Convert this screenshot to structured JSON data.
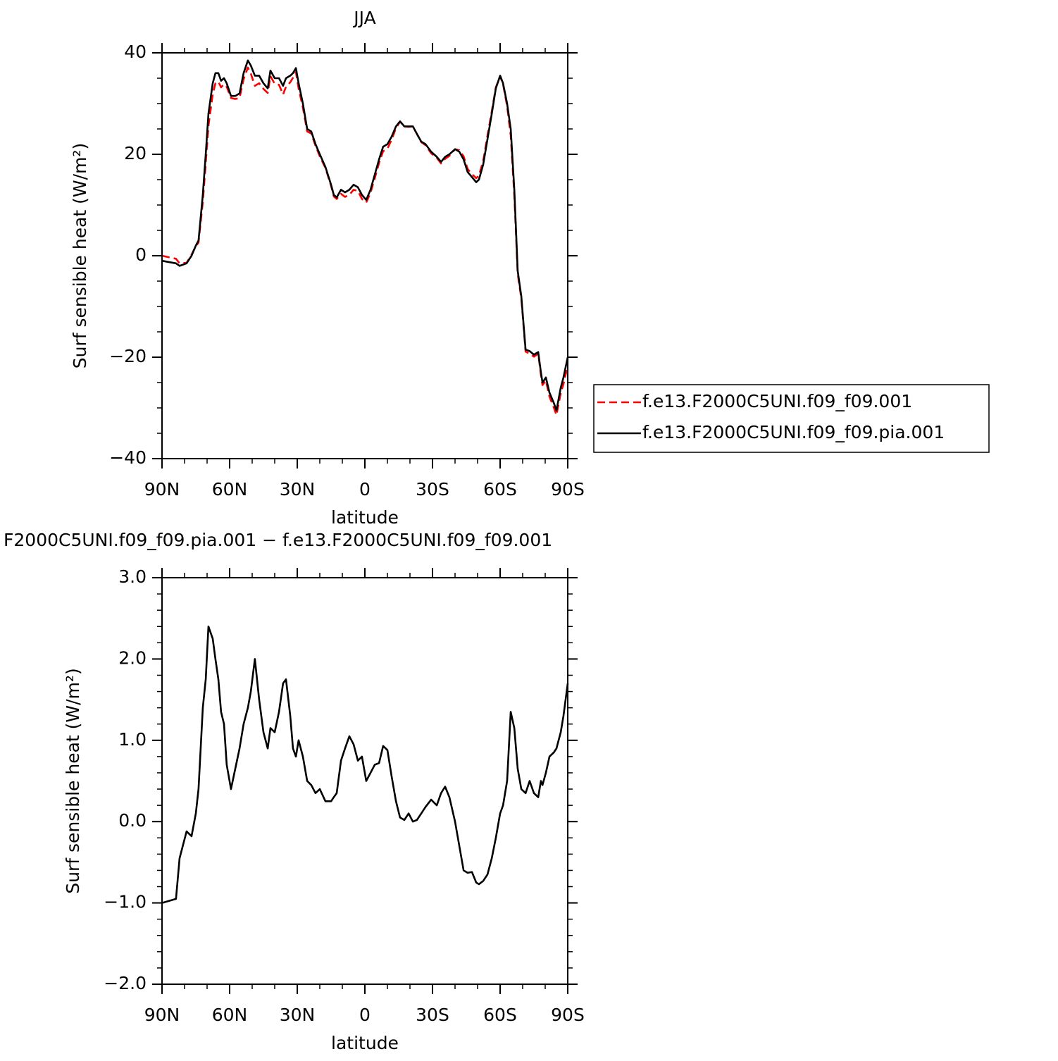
{
  "chart_data": [
    {
      "type": "line",
      "title": "JJA",
      "x_label": "latitude",
      "y_label": "Surf sensible heat (W/m²)",
      "xlim": [
        90,
        -90
      ],
      "ylim": [
        -40,
        40
      ],
      "xticks": [
        {
          "value": 90,
          "label": "90N"
        },
        {
          "value": 60,
          "label": "60N"
        },
        {
          "value": 30,
          "label": "30N"
        },
        0,
        {
          "value": -30,
          "label": "30S"
        },
        {
          "value": -60,
          "label": "60S"
        },
        {
          "value": -90,
          "label": "90S"
        }
      ],
      "yticks": [
        {
          "value": -40,
          "label": "−40"
        },
        {
          "value": -20,
          "label": "−20"
        },
        0,
        20,
        40
      ],
      "legend": "right",
      "x": [
        90,
        83.8,
        82.2,
        79.1,
        76.9,
        75,
        73.8,
        71.9,
        70.6,
        69.4,
        67.5,
        66.3,
        65,
        63.8,
        62.5,
        61.3,
        59.4,
        57.5,
        55.6,
        53.8,
        51.9,
        50.6,
        48.8,
        46.9,
        45,
        43.1,
        41.9,
        40,
        38.1,
        36.3,
        35,
        33.1,
        31.9,
        30.6,
        29.4,
        27.5,
        25.6,
        23.8,
        21.9,
        20,
        17.5,
        15,
        13.8,
        12.5,
        10.6,
        8.8,
        6.9,
        5,
        3.1,
        1.3,
        -0.6,
        -2.5,
        -4.4,
        -6.3,
        -8.1,
        -10,
        -11.9,
        -13.8,
        -15.6,
        -17.5,
        -19.4,
        -21.3,
        -23.1,
        -25,
        -26.9,
        -29.4,
        -31.9,
        -33.8,
        -35.6,
        -37.5,
        -40,
        -41.9,
        -43.8,
        -45.6,
        -47.5,
        -49.4,
        -50.6,
        -52.5,
        -54.4,
        -56.3,
        -58.1,
        -60,
        -61.3,
        -63.1,
        -64.7,
        -66.3,
        -67.8,
        -69.4,
        -71.3,
        -73.1,
        -75,
        -76.9,
        -78.1,
        -78.8,
        -80.3,
        -81.9,
        -83.8,
        -85,
        -86.9,
        -88.1,
        -90
      ],
      "series": [
        {
          "name": "f.e13.F2000C5UNI.f09_f09.001",
          "color": "#ff0000",
          "line_style": "dashed",
          "values": [
            0,
            -0.6,
            -1.5,
            -1.4,
            0.2,
            1.9,
            2.6,
            10.6,
            18.3,
            25.6,
            31.8,
            34,
            34.3,
            33.2,
            33.8,
            33.3,
            31.1,
            30.9,
            31.1,
            34.8,
            37.1,
            35.9,
            33.5,
            34,
            32.9,
            32.1,
            35.4,
            33.9,
            33.7,
            31.8,
            33.3,
            34.2,
            35.1,
            36.2,
            33,
            29.2,
            24.5,
            24.1,
            21.7,
            19.6,
            17.3,
            13.8,
            11.7,
            11.2,
            12.2,
            11.6,
            12,
            13,
            12.8,
            11.2,
            10.5,
            12.4,
            15.3,
            18.3,
            20.6,
            21.1,
            22.9,
            25.2,
            26.4,
            25.5,
            25.4,
            25.5,
            24,
            22.4,
            21.8,
            20.2,
            19.3,
            18.2,
            19.1,
            19.7,
            21,
            20.8,
            19.6,
            17.1,
            16.1,
            15.3,
            15.8,
            18.7,
            23.7,
            28.5,
            33.2,
            35.4,
            33.8,
            29.5,
            23.7,
            11.9,
            -3.6,
            -8.4,
            -18.9,
            -19.3,
            -19.9,
            -19.3,
            -23.5,
            -25.5,
            -24.6,
            -27.8,
            -29.9,
            -31.4,
            -27.1,
            -25.3,
            -21.7
          ]
        },
        {
          "name": "f.e13.F2000C5UNI.f09_f09.pia.001",
          "color": "#000000",
          "line_style": "solid",
          "values": [
            -1,
            -1.5,
            -2,
            -1.5,
            0,
            2,
            3,
            12,
            20,
            28,
            34,
            36,
            36,
            34.5,
            35,
            34,
            31.5,
            31.5,
            32,
            36,
            38.5,
            37.5,
            35.5,
            35.5,
            34,
            33,
            36.5,
            35,
            35,
            33.5,
            35,
            35.5,
            36,
            37,
            34,
            30,
            25,
            24.5,
            22,
            20,
            17.5,
            14,
            12,
            11.5,
            13,
            12.5,
            13,
            14,
            13.5,
            12,
            11,
            13,
            16,
            19,
            21.5,
            22,
            23.5,
            25.5,
            26.5,
            25.5,
            25.5,
            25.5,
            24,
            22.5,
            22,
            20.5,
            19.5,
            18.5,
            19.5,
            20,
            21,
            20.5,
            19,
            16.5,
            15.5,
            14.5,
            15,
            18,
            23,
            28,
            33,
            35.5,
            34,
            30,
            25,
            13,
            -3,
            -8,
            -18.5,
            -18.8,
            -19.5,
            -19,
            -23,
            -25,
            -24,
            -27,
            -29,
            -30.5,
            -26,
            -24,
            -20
          ]
        }
      ]
    },
    {
      "type": "line",
      "title": "F2000C5UNI.f09_f09.pia.001 − f.e13.F2000C5UNI.f09_f09.001",
      "x_label": "latitude",
      "y_label": "Surf sensible heat (W/m²)",
      "xlim": [
        90,
        -90
      ],
      "ylim": [
        -2,
        3
      ],
      "xticks": [
        {
          "value": 90,
          "label": "90N"
        },
        {
          "value": 60,
          "label": "60N"
        },
        {
          "value": 30,
          "label": "30N"
        },
        0,
        {
          "value": -30,
          "label": "30S"
        },
        {
          "value": -60,
          "label": "60S"
        },
        {
          "value": -90,
          "label": "90S"
        }
      ],
      "yticks": [
        {
          "value": -2,
          "label": "−2.0"
        },
        {
          "value": -1,
          "label": "−1.0"
        },
        {
          "value": 0,
          "label": "0.0"
        },
        {
          "value": 1,
          "label": "1.0"
        },
        {
          "value": 2,
          "label": "2.0"
        },
        {
          "value": 3,
          "label": "3.0"
        }
      ],
      "x": [
        90,
        83.8,
        82.2,
        79.1,
        76.9,
        75,
        73.8,
        71.9,
        70.6,
        69.4,
        67.5,
        66.3,
        65,
        63.8,
        62.5,
        61.3,
        59.4,
        57.5,
        55.6,
        53.8,
        51.9,
        50.6,
        48.8,
        46.9,
        45,
        43.1,
        41.9,
        40,
        38.1,
        36.3,
        35,
        33.1,
        31.9,
        30.6,
        29.4,
        27.5,
        25.6,
        23.8,
        21.9,
        20,
        17.5,
        15,
        13.8,
        12.5,
        10.6,
        8.8,
        6.9,
        5,
        3.1,
        1.3,
        -0.6,
        -2.5,
        -4.4,
        -6.3,
        -8.1,
        -10,
        -11.9,
        -13.8,
        -15.6,
        -17.5,
        -19.4,
        -21.3,
        -23.1,
        -25,
        -26.9,
        -29.4,
        -31.9,
        -33.8,
        -35.6,
        -37.5,
        -40,
        -41.9,
        -43.8,
        -45.6,
        -47.5,
        -49.4,
        -50.6,
        -52.5,
        -54.4,
        -56.3,
        -58.1,
        -60,
        -61.3,
        -63.1,
        -64.7,
        -66.3,
        -67.8,
        -69.4,
        -71.3,
        -73.1,
        -75,
        -76.9,
        -78.1,
        -78.8,
        -80.3,
        -81.9,
        -83.8,
        -85,
        -86.9,
        -88.1,
        -90
      ],
      "series": [
        {
          "color": "#000000",
          "line_style": "solid",
          "values": [
            -1.0,
            -0.95,
            -0.45,
            -0.12,
            -0.18,
            0.1,
            0.4,
            1.4,
            1.75,
            2.4,
            2.25,
            2.0,
            1.75,
            1.35,
            1.2,
            0.7,
            0.4,
            0.65,
            0.9,
            1.2,
            1.4,
            1.6,
            2.0,
            1.5,
            1.1,
            0.9,
            1.15,
            1.1,
            1.35,
            1.7,
            1.75,
            1.3,
            0.9,
            0.8,
            1.0,
            0.8,
            0.5,
            0.45,
            0.35,
            0.4,
            0.25,
            0.25,
            0.3,
            0.35,
            0.75,
            0.9,
            1.05,
            0.95,
            0.75,
            0.8,
            0.5,
            0.6,
            0.7,
            0.72,
            0.93,
            0.88,
            0.55,
            0.25,
            0.05,
            0.02,
            0.1,
            0.0,
            0.02,
            0.1,
            0.18,
            0.27,
            0.2,
            0.35,
            0.43,
            0.3,
            0.0,
            -0.3,
            -0.6,
            -0.63,
            -0.62,
            -0.75,
            -0.77,
            -0.73,
            -0.65,
            -0.45,
            -0.2,
            0.1,
            0.2,
            0.5,
            1.35,
            1.15,
            0.65,
            0.4,
            0.35,
            0.5,
            0.35,
            0.3,
            0.5,
            0.45,
            0.6,
            0.8,
            0.85,
            0.9,
            1.1,
            1.3,
            1.7
          ]
        }
      ]
    }
  ]
}
